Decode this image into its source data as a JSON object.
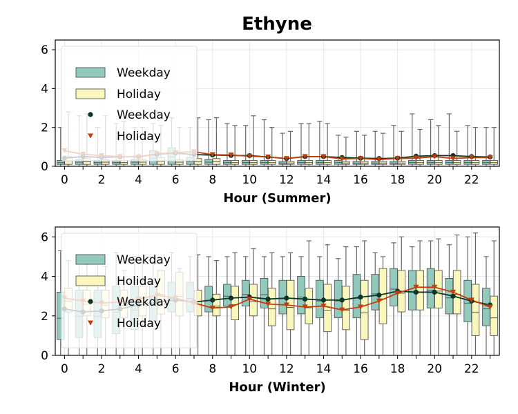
{
  "chart_data": {
    "type": "box",
    "title": "Ethyne",
    "colors": {
      "weekday_box": "#92c9bd",
      "holiday_box": "#f9f7bc",
      "weekday_mean": "#0b3526",
      "holiday_mean": "#c03e08",
      "box_edge": "#555555",
      "whisker": "#666666"
    },
    "legend": {
      "placement": "upper-left",
      "labels": [
        "Weekday",
        "Holiday",
        "Weekday",
        "Holiday"
      ]
    },
    "x_ticks": [
      "0",
      "2",
      "4",
      "6",
      "8",
      "10",
      "12",
      "14",
      "16",
      "18",
      "20",
      "22"
    ],
    "hours": [
      0,
      1,
      2,
      3,
      4,
      5,
      6,
      7,
      8,
      9,
      10,
      11,
      12,
      13,
      14,
      15,
      16,
      17,
      18,
      19,
      20,
      21,
      22,
      23
    ],
    "panels": [
      {
        "xlabel": "Hour (Summer)",
        "ylim": [
          0,
          6.5
        ],
        "y_ticks": [
          "0",
          "2",
          "4",
          "6"
        ],
        "grid": true,
        "weekday_mean": [
          0.42,
          0.5,
          0.46,
          0.48,
          0.5,
          0.62,
          0.68,
          0.6,
          0.58,
          0.56,
          0.55,
          0.48,
          0.4,
          0.5,
          0.5,
          0.45,
          0.42,
          0.4,
          0.42,
          0.52,
          0.55,
          0.55,
          0.5,
          0.48
        ],
        "holiday_mean": [
          0.8,
          0.62,
          0.55,
          0.5,
          0.48,
          0.65,
          0.7,
          0.75,
          0.6,
          0.58,
          0.52,
          0.48,
          0.4,
          0.5,
          0.5,
          0.38,
          0.4,
          0.35,
          0.4,
          0.42,
          0.5,
          0.4,
          0.45,
          0.45
        ],
        "weekday_box": {
          "q1": [
            0.1,
            0.1,
            0.1,
            0.1,
            0.1,
            0.1,
            0.1,
            0.1,
            0.1,
            0.1,
            0.1,
            0.1,
            0.1,
            0.1,
            0.1,
            0.1,
            0.1,
            0.1,
            0.1,
            0.1,
            0.1,
            0.1,
            0.1,
            0.1
          ],
          "q3": [
            0.3,
            0.35,
            0.3,
            0.3,
            0.35,
            0.8,
            0.95,
            0.45,
            0.35,
            0.3,
            0.3,
            0.3,
            0.25,
            0.3,
            0.3,
            0.3,
            0.25,
            0.25,
            0.25,
            0.3,
            0.3,
            0.3,
            0.3,
            0.3
          ],
          "hi": [
            2.0,
            2.6,
            2.0,
            2.2,
            2.0,
            2.2,
            2.5,
            2.0,
            2.4,
            2.2,
            2.1,
            2.4,
            1.7,
            2.2,
            2.3,
            1.6,
            1.8,
            1.8,
            2.1,
            2.7,
            2.4,
            2.7,
            2.1,
            2.0
          ]
        },
        "holiday_box": {
          "q1": [
            0.1,
            0.1,
            0.1,
            0.1,
            0.1,
            0.1,
            0.1,
            0.1,
            0.1,
            0.1,
            0.1,
            0.1,
            0.1,
            0.1,
            0.1,
            0.1,
            0.1,
            0.1,
            0.1,
            0.1,
            0.1,
            0.1,
            0.1,
            0.1
          ],
          "q3": [
            0.5,
            0.4,
            0.35,
            0.3,
            0.35,
            0.45,
            0.35,
            0.4,
            0.4,
            0.3,
            0.3,
            0.3,
            0.25,
            0.3,
            0.3,
            0.25,
            0.25,
            0.25,
            0.25,
            0.3,
            0.3,
            0.3,
            0.3,
            0.3
          ],
          "hi": [
            2.8,
            2.7,
            2.6,
            2.3,
            2.0,
            2.1,
            2.0,
            2.5,
            2.5,
            2.1,
            2.6,
            2.0,
            1.8,
            2.2,
            2.2,
            1.5,
            1.6,
            1.7,
            1.8,
            1.9,
            2.1,
            1.8,
            2.0,
            2.0
          ]
        }
      },
      {
        "xlabel": "Hour (Winter)",
        "ylim": [
          0,
          6.5
        ],
        "y_ticks": [
          "0",
          "2",
          "4",
          "6"
        ],
        "grid": true,
        "weekday_mean": [
          2.35,
          2.2,
          2.25,
          2.35,
          2.55,
          2.7,
          2.8,
          2.7,
          2.8,
          2.9,
          2.95,
          2.85,
          2.9,
          2.85,
          2.8,
          2.8,
          2.95,
          3.05,
          3.25,
          3.2,
          3.2,
          3.0,
          2.75,
          2.55
        ],
        "holiday_mean": [
          2.9,
          2.75,
          2.65,
          2.7,
          2.85,
          3.05,
          2.9,
          2.65,
          2.4,
          2.45,
          2.85,
          2.6,
          2.55,
          2.45,
          2.5,
          2.3,
          2.45,
          2.75,
          3.15,
          3.45,
          3.45,
          3.2,
          2.8,
          2.45
        ],
        "weekday_box": {
          "q1": [
            0.8,
            0.9,
            0.9,
            1.1,
            1.3,
            1.7,
            2.2,
            2.2,
            2.2,
            2.5,
            2.5,
            2.4,
            2.1,
            2.1,
            1.9,
            1.9,
            1.9,
            2.3,
            2.5,
            2.3,
            2.4,
            2.1,
            1.7,
            1.5
          ],
          "q3": [
            3.2,
            3.3,
            3.3,
            3.5,
            3.5,
            3.7,
            3.7,
            3.7,
            3.5,
            3.6,
            3.8,
            3.9,
            3.8,
            4.0,
            3.8,
            3.8,
            4.1,
            4.1,
            4.4,
            4.3,
            4.4,
            3.9,
            3.8,
            3.4
          ],
          "hi": [
            5.3,
            4.8,
            5.0,
            5.2,
            5.0,
            5.0,
            5.2,
            5.0,
            5.0,
            5.0,
            5.0,
            5.0,
            5.0,
            5.0,
            5.0,
            4.9,
            5.5,
            5.2,
            5.7,
            5.5,
            5.8,
            5.6,
            6.0,
            5.0
          ]
        },
        "holiday_box": {
          "q1": [
            2.2,
            2.0,
            1.9,
            1.9,
            2.0,
            2.1,
            2.0,
            2.0,
            2.0,
            1.8,
            2.0,
            1.5,
            1.3,
            1.6,
            1.2,
            1.3,
            0.8,
            1.6,
            2.2,
            2.3,
            2.4,
            2.1,
            1.0,
            1.0
          ],
          "q3": [
            3.4,
            3.3,
            3.3,
            3.3,
            3.5,
            4.3,
            4.2,
            3.3,
            3.1,
            3.5,
            3.6,
            3.4,
            3.8,
            3.4,
            3.6,
            3.5,
            3.8,
            4.4,
            4.3,
            4.3,
            4.3,
            4.3,
            3.6,
            3.0
          ],
          "hi": [
            4.8,
            4.6,
            4.5,
            4.3,
            4.8,
            4.3,
            4.4,
            5.1,
            4.8,
            5.2,
            5.4,
            5.2,
            5.2,
            5.8,
            5.6,
            5.5,
            5.8,
            5.0,
            6.0,
            5.8,
            5.9,
            6.1,
            6.2,
            5.8
          ]
        }
      }
    ]
  }
}
